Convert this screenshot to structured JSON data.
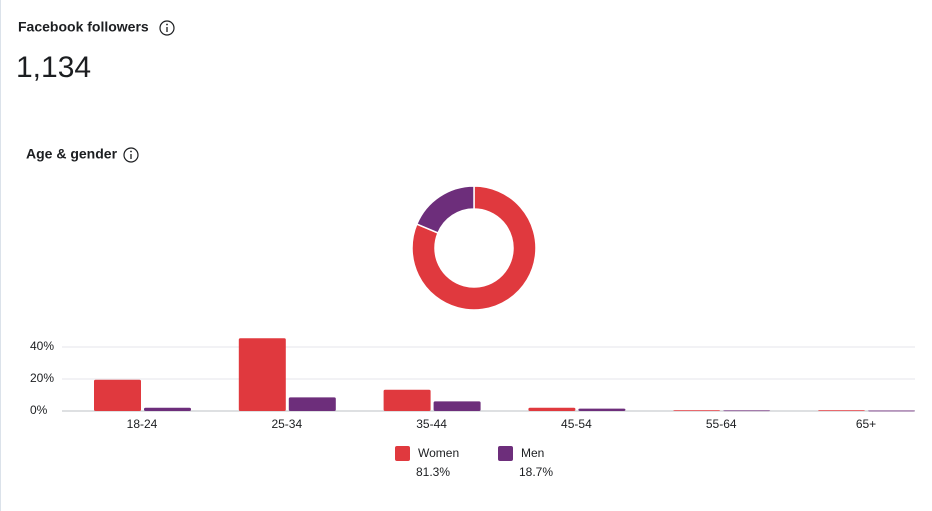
{
  "header": {
    "title": "Facebook followers",
    "value": "1,134"
  },
  "section_title": "Age & gender",
  "chart_data": [
    {
      "type": "donut",
      "values": [
        81.3,
        18.7
      ],
      "value_labels": [
        "81.3%",
        "18.7%"
      ],
      "colors": [
        "#e0393e",
        "#6d2e7b"
      ]
    },
    {
      "type": "bar",
      "categories": [
        "18-24",
        "25-34",
        "35-44",
        "45-54",
        "55-64",
        "65+"
      ],
      "series": [
        {
          "name": "Women",
          "color": "#e0393e",
          "values": [
            19.5,
            45.5,
            13.3,
            2,
            0.5,
            0.5
          ]
        },
        {
          "name": "Men",
          "color": "#6d2e7b",
          "values": [
            2,
            8.5,
            6,
            1.5,
            0.4,
            0.3
          ]
        }
      ],
      "ylim": [
        0,
        50
      ],
      "yticks": [
        {
          "value": 0,
          "label": "0%"
        },
        {
          "value": 20,
          "label": "20%"
        },
        {
          "value": 40,
          "label": "40%"
        }
      ],
      "grid": true
    }
  ]
}
